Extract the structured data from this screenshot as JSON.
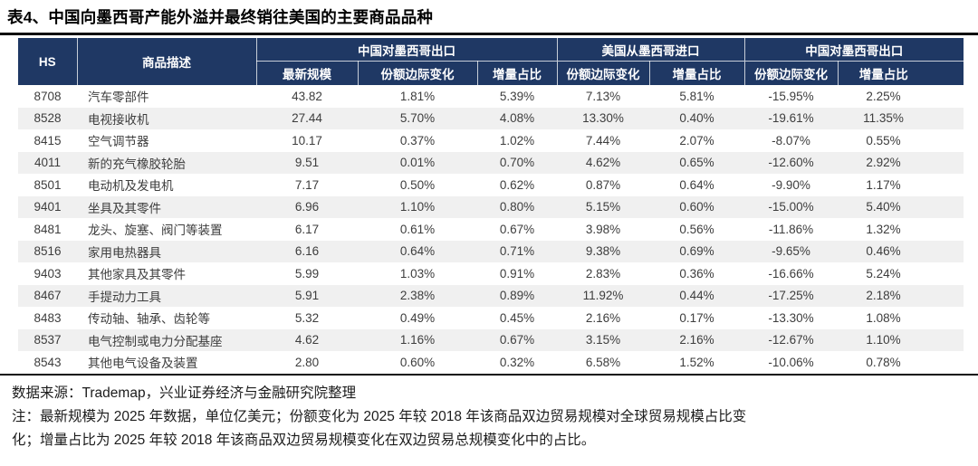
{
  "title": "表4、中国向墨西哥产能外溢并最终销往美国的主要商品品种",
  "chart_data": {
    "type": "table",
    "title": "表4、中国向墨西哥产能外溢并最终销往美国的主要商品品种",
    "header": {
      "hs": "HS",
      "desc": "商品描述",
      "groups": [
        {
          "label": "中国对墨西哥出口",
          "subcolumns": [
            "最新规模",
            "份额边际变化",
            "增量占比"
          ]
        },
        {
          "label": "美国从墨西哥进口",
          "subcolumns": [
            "份额边际变化",
            "增量占比"
          ]
        },
        {
          "label": "中国对墨西哥出口",
          "subcolumns": [
            "份额边际变化",
            "增量占比"
          ]
        }
      ]
    },
    "rows": [
      {
        "hs": "8708",
        "desc": "汽车零部件",
        "values": [
          "43.82",
          "1.81%",
          "5.39%",
          "7.13%",
          "5.81%",
          "-15.95%",
          "2.25%"
        ]
      },
      {
        "hs": "8528",
        "desc": "电视接收机",
        "values": [
          "27.44",
          "5.70%",
          "4.08%",
          "13.30%",
          "0.40%",
          "-19.61%",
          "11.35%"
        ]
      },
      {
        "hs": "8415",
        "desc": "空气调节器",
        "values": [
          "10.17",
          "0.37%",
          "1.02%",
          "7.44%",
          "2.07%",
          "-8.07%",
          "0.55%"
        ]
      },
      {
        "hs": "4011",
        "desc": "新的充气橡胶轮胎",
        "values": [
          "9.51",
          "0.01%",
          "0.70%",
          "4.62%",
          "0.65%",
          "-12.60%",
          "2.92%"
        ]
      },
      {
        "hs": "8501",
        "desc": "电动机及发电机",
        "values": [
          "7.17",
          "0.50%",
          "0.62%",
          "0.87%",
          "0.64%",
          "-9.90%",
          "1.17%"
        ]
      },
      {
        "hs": "9401",
        "desc": "坐具及其零件",
        "values": [
          "6.96",
          "1.10%",
          "0.80%",
          "5.15%",
          "0.60%",
          "-15.00%",
          "5.40%"
        ]
      },
      {
        "hs": "8481",
        "desc": "龙头、旋塞、阀门等装置",
        "values": [
          "6.17",
          "0.61%",
          "0.67%",
          "3.98%",
          "0.56%",
          "-11.86%",
          "1.32%"
        ]
      },
      {
        "hs": "8516",
        "desc": "家用电热器具",
        "values": [
          "6.16",
          "0.64%",
          "0.71%",
          "9.38%",
          "0.69%",
          "-9.65%",
          "0.46%"
        ]
      },
      {
        "hs": "9403",
        "desc": "其他家具及其零件",
        "values": [
          "5.99",
          "1.03%",
          "0.91%",
          "2.83%",
          "0.36%",
          "-16.66%",
          "5.24%"
        ]
      },
      {
        "hs": "8467",
        "desc": "手提动力工具",
        "values": [
          "5.91",
          "2.38%",
          "0.89%",
          "11.92%",
          "0.44%",
          "-17.25%",
          "2.18%"
        ]
      },
      {
        "hs": "8483",
        "desc": "传动轴、轴承、齿轮等",
        "values": [
          "5.32",
          "0.49%",
          "0.45%",
          "2.16%",
          "0.17%",
          "-13.30%",
          "1.08%"
        ]
      },
      {
        "hs": "8537",
        "desc": "电气控制或电力分配基座",
        "values": [
          "4.62",
          "1.16%",
          "0.67%",
          "3.15%",
          "2.16%",
          "-12.67%",
          "1.10%"
        ]
      },
      {
        "hs": "8543",
        "desc": "其他电气设备及装置",
        "values": [
          "2.80",
          "0.60%",
          "0.32%",
          "6.58%",
          "1.52%",
          "-10.06%",
          "0.78%"
        ]
      }
    ]
  },
  "footer": {
    "source": "数据来源：Trademap，兴业证券经济与金融研究院整理",
    "note_line1": "注：最新规模为 2025 年数据，单位亿美元；份额变化为 2025 年较 2018 年该商品双边贸易规模对全球贸易规模占比变",
    "note_line2": "化；增量占比为 2025 年较 2018 年该商品双边贸易规模变化在双边贸易总规模变化中的占比。"
  },
  "colors": {
    "header_bg": "#1f3864",
    "stripe": "#f0f0f0",
    "rule": "#0d0d0d"
  }
}
